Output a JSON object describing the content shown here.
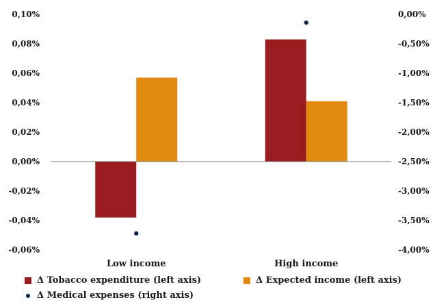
{
  "chart_data": {
    "type": "bar",
    "categories": [
      "Low income",
      "High income"
    ],
    "series": [
      {
        "name": "Δ Tobacco expenditure  (left axis)",
        "axis": "left",
        "kind": "bar",
        "values": [
          -0.038,
          0.083
        ],
        "color": "#9b1c1f"
      },
      {
        "name": "Δ Expected income (left axis)",
        "axis": "left",
        "kind": "bar",
        "values": [
          0.057,
          0.041
        ],
        "color": "#e08a10"
      },
      {
        "name": "Δ Medical expenses  (right axis)",
        "axis": "right",
        "kind": "scatter",
        "values": [
          -3.72,
          -0.14
        ],
        "color": "#14234a"
      }
    ],
    "left_axis": {
      "ylim": [
        -0.06,
        0.1
      ],
      "ticks": [
        0.1,
        0.08,
        0.06,
        0.04,
        0.02,
        0.0,
        -0.02,
        -0.04,
        -0.06
      ],
      "tick_labels": [
        "0,10%",
        "0,08%",
        "0,06%",
        "0,04%",
        "0,02%",
        "0,00%",
        "-0,02%",
        "-0,04%",
        "-0,06%"
      ]
    },
    "right_axis": {
      "ylim": [
        -4.0,
        0.0
      ],
      "ticks": [
        0.0,
        -0.5,
        -1.0,
        -1.5,
        -2.0,
        -2.5,
        -3.0,
        -3.5,
        -4.0
      ],
      "tick_labels": [
        "0,00%",
        "-0,50%",
        "-1,00%",
        "-1,50%",
        "-2,00%",
        "-2,50%",
        "-3,00%",
        "-3,50%",
        "-4,00%"
      ]
    },
    "grid": false,
    "legend_position": "bottom"
  }
}
